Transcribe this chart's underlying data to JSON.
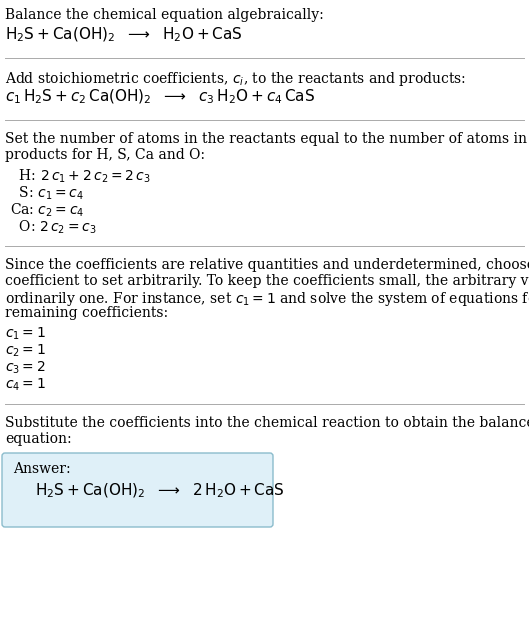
{
  "bg_color": "#ffffff",
  "text_color": "#000000",
  "text_color_dark": "#333333",
  "section1_title": "Balance the chemical equation algebraically:",
  "section1_eq": "$\\mathrm{H_2S + Ca(OH)_2}$  $\\longrightarrow$  $\\mathrm{H_2O + CaS}$",
  "section2_title": "Add stoichiometric coefficients, $c_i$, to the reactants and products:",
  "section2_eq": "$c_1\\,\\mathrm{H_2S} + c_2\\,\\mathrm{Ca(OH)_2}$  $\\longrightarrow$  $c_3\\,\\mathrm{H_2O} + c_4\\,\\mathrm{CaS}$",
  "section3_title_l1": "Set the number of atoms in the reactants equal to the number of atoms in the",
  "section3_title_l2": "products for H, S, Ca and O:",
  "section3_lines": [
    [
      "  H: ",
      "$2\\,c_1 + 2\\,c_2 = 2\\,c_3$"
    ],
    [
      "  S: ",
      "$c_1 = c_4$"
    ],
    [
      "Ca: ",
      "$c_2 = c_4$"
    ],
    [
      "  O: ",
      "$2\\,c_2 = c_3$"
    ]
  ],
  "section4_title_l1": "Since the coefficients are relative quantities and underdetermined, choose a",
  "section4_title_l2": "coefficient to set arbitrarily. To keep the coefficients small, the arbitrary value is",
  "section4_title_l3": "ordinarily one. For instance, set $c_1 = 1$ and solve the system of equations for the",
  "section4_title_l4": "remaining coefficients:",
  "section4_lines": [
    "$c_1 = 1$",
    "$c_2 = 1$",
    "$c_3 = 2$",
    "$c_4 = 1$"
  ],
  "section5_title_l1": "Substitute the coefficients into the chemical reaction to obtain the balanced",
  "section5_title_l2": "equation:",
  "answer_label": "Answer:",
  "answer_eq": "$\\mathrm{H_2S + Ca(OH)_2}$  $\\longrightarrow$  $\\mathrm{2\\,H_2O + CaS}$",
  "answer_box_facecolor": "#dff0f8",
  "answer_box_edgecolor": "#8bbccc",
  "divider_color": "#aaaaaa",
  "body_fontsize": 10,
  "eq_fontsize": 11,
  "body_font": "DejaVu Serif",
  "math_fontsize": 10
}
